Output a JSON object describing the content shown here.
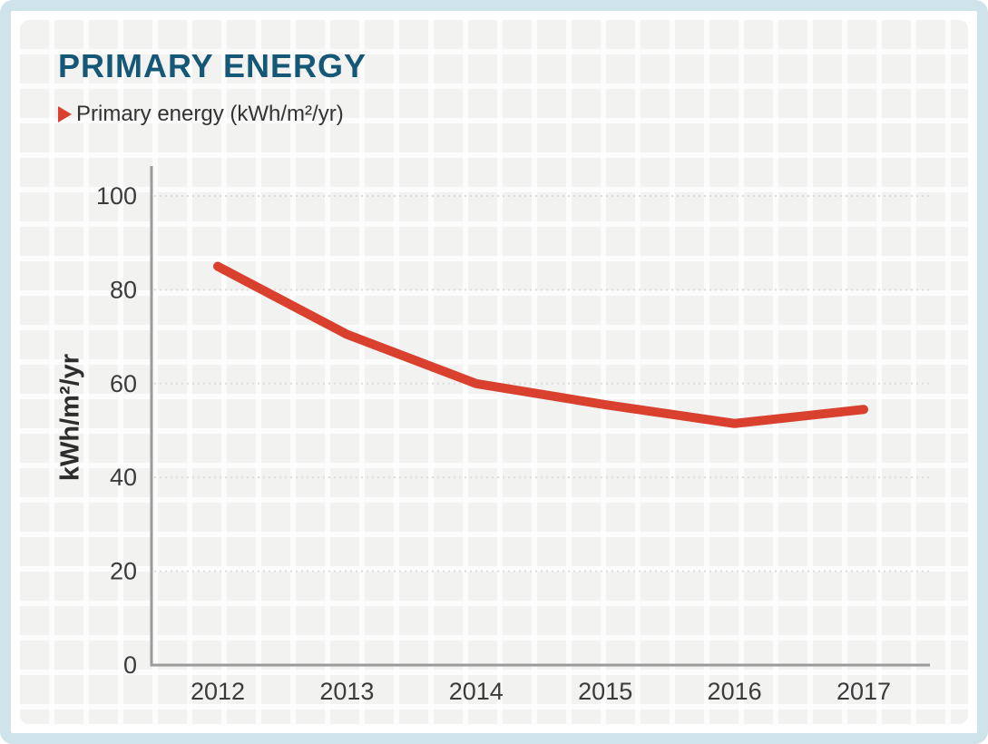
{
  "header": {
    "title": "PRIMARY ENERGY"
  },
  "legend": {
    "label": "Primary energy (kWh/m²/yr)"
  },
  "colors": {
    "accent_red": "#d9412e",
    "title_blue": "#155777",
    "frame_blue": "#cfe4ea",
    "axis_gray": "#9b9b9b",
    "grid_gray": "#dcdcdc",
    "text_gray": "#3b3b3b"
  },
  "chart_data": {
    "type": "line",
    "title": "PRIMARY ENERGY",
    "legend_entries": [
      "Primary energy (kWh/m²/yr)"
    ],
    "legend_position": "top-left",
    "xlabel": "",
    "ylabel": "kWh/m²/yr",
    "categories": [
      "2012",
      "2013",
      "2014",
      "2015",
      "2016",
      "2017"
    ],
    "series": [
      {
        "name": "Primary energy (kWh/m²/yr)",
        "color": "#d9412e",
        "values": [
          85,
          70.5,
          60,
          55.5,
          51.5,
          54.5
        ]
      }
    ],
    "ylim": [
      0,
      100
    ],
    "yticks": [
      0,
      20,
      40,
      60,
      80,
      100
    ],
    "grid": "horizontal dotted lines at each y tick"
  }
}
